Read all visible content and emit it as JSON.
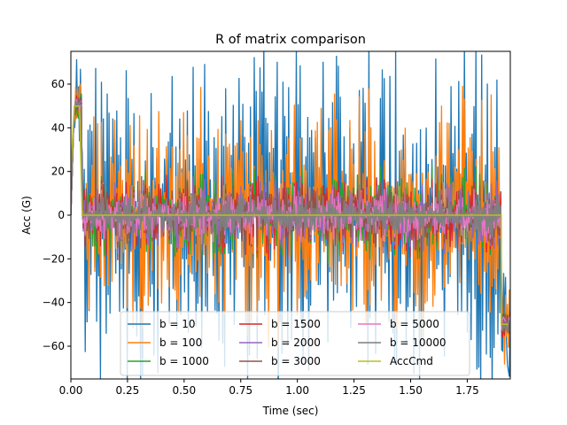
{
  "chart_data": {
    "type": "line",
    "title": "R of matrix comparison",
    "xlabel": "Time (sec)",
    "ylabel": "Acc (G)",
    "xlim": [
      0,
      1.94
    ],
    "ylim": [
      -75,
      75
    ],
    "x_ticks": [
      "0.00",
      "0.25",
      "0.50",
      "0.75",
      "1.00",
      "1.25",
      "1.50",
      "1.75"
    ],
    "y_ticks": [
      "−60",
      "−40",
      "−20",
      "0",
      "20",
      "40",
      "60"
    ],
    "grid": false,
    "legend_position": "lower-center",
    "legend_columns": 3,
    "signal_window": [
      0.05,
      1.9
    ],
    "series": [
      {
        "name": "b = 10",
        "color": "#1f77b4",
        "amplitude": 75
      },
      {
        "name": "b = 100",
        "color": "#ff7f0e",
        "amplitude": 50
      },
      {
        "name": "b = 1000",
        "color": "#2ca02c",
        "amplitude": 20
      },
      {
        "name": "b = 1500",
        "color": "#d62728",
        "amplitude": 17
      },
      {
        "name": "b = 2000",
        "color": "#9467bd",
        "amplitude": 15
      },
      {
        "name": "b = 3000",
        "color": "#8c564b",
        "amplitude": 13
      },
      {
        "name": "b = 5000",
        "color": "#e377c2",
        "amplitude": 11
      },
      {
        "name": "b = 10000",
        "color": "#7f7f7f",
        "amplitude": 9
      },
      {
        "name": "AccCmd",
        "color": "#bcbd22",
        "x": [
          0.0,
          0.015,
          0.038,
          0.05,
          0.05,
          1.9,
          1.9,
          1.93
        ],
        "y": [
          20,
          50,
          50,
          0,
          0,
          0,
          -50,
          -50
        ]
      }
    ]
  }
}
